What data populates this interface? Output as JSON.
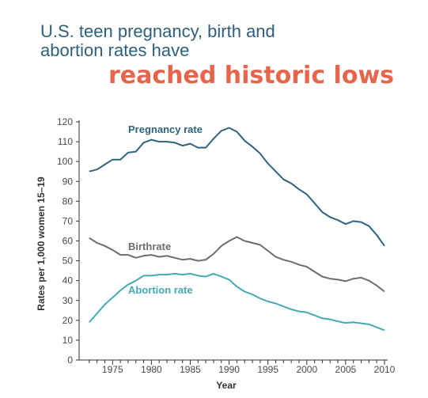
{
  "title": {
    "line1": "U.S. teen pregnancy, birth and",
    "line2": "abortion rates have",
    "highlight": "reached historic lows"
  },
  "colors": {
    "title": "#2f5f7a",
    "highlight": "#e8644a",
    "pregnancy": "#2f6480",
    "birth": "#6d6d6d",
    "abortion": "#45aab5"
  },
  "chart_data": {
    "type": "line",
    "xlabel": "Year",
    "ylabel": "Rates per 1,000 women 15–19",
    "xlim": [
      1971,
      2010
    ],
    "ylim": [
      0,
      120
    ],
    "xticks": [
      1975,
      1980,
      1985,
      1990,
      1995,
      2000,
      2005,
      2010
    ],
    "yticks": [
      0,
      10,
      20,
      30,
      40,
      50,
      60,
      70,
      80,
      90,
      100,
      110,
      120
    ],
    "grid": false,
    "legend": "inline labels",
    "x": [
      1972,
      1973,
      1974,
      1975,
      1976,
      1977,
      1978,
      1979,
      1980,
      1981,
      1982,
      1983,
      1984,
      1985,
      1986,
      1987,
      1988,
      1989,
      1990,
      1991,
      1992,
      1993,
      1994,
      1995,
      1996,
      1997,
      1998,
      1999,
      2000,
      2001,
      2002,
      2003,
      2004,
      2005,
      2006,
      2007,
      2008,
      2009,
      2010
    ],
    "series": [
      {
        "name": "Pregnancy rate",
        "color": "#2f6480",
        "values": [
          95,
          96,
          98.5,
          101,
          101,
          104.5,
          105,
          109.5,
          111,
          110,
          110,
          109.5,
          108,
          109,
          107,
          107,
          111.5,
          115.5,
          117,
          115,
          110.5,
          107.5,
          104,
          99,
          95,
          91,
          89,
          86,
          83.5,
          79,
          74.5,
          72,
          70.5,
          68.5,
          70,
          69.5,
          67.5,
          63,
          57.5
        ]
      },
      {
        "name": "Birthrate",
        "color": "#6d6d6d",
        "values": [
          61.5,
          59,
          57.5,
          55.5,
          53,
          53,
          51.5,
          52.5,
          53,
          52,
          52.5,
          51.5,
          50.5,
          51,
          50,
          50.5,
          53.5,
          57.5,
          60,
          62,
          60,
          59,
          58,
          55,
          52,
          50.5,
          49.5,
          48,
          47,
          44.5,
          42,
          41,
          40.5,
          39.7,
          41,
          41.5,
          40,
          37.5,
          34.5
        ]
      },
      {
        "name": "Abortion rate",
        "color": "#45aab5",
        "values": [
          19,
          23.5,
          28,
          31.5,
          35,
          38,
          40,
          42.5,
          42.5,
          43,
          43,
          43.5,
          43,
          43.5,
          42.5,
          42,
          43.5,
          42,
          40.5,
          37,
          34.5,
          33,
          31,
          29.5,
          28.5,
          27,
          25.5,
          24.5,
          24,
          22.5,
          21,
          20.5,
          19.5,
          18.7,
          19,
          18.5,
          18,
          16.5,
          15
        ]
      }
    ]
  }
}
